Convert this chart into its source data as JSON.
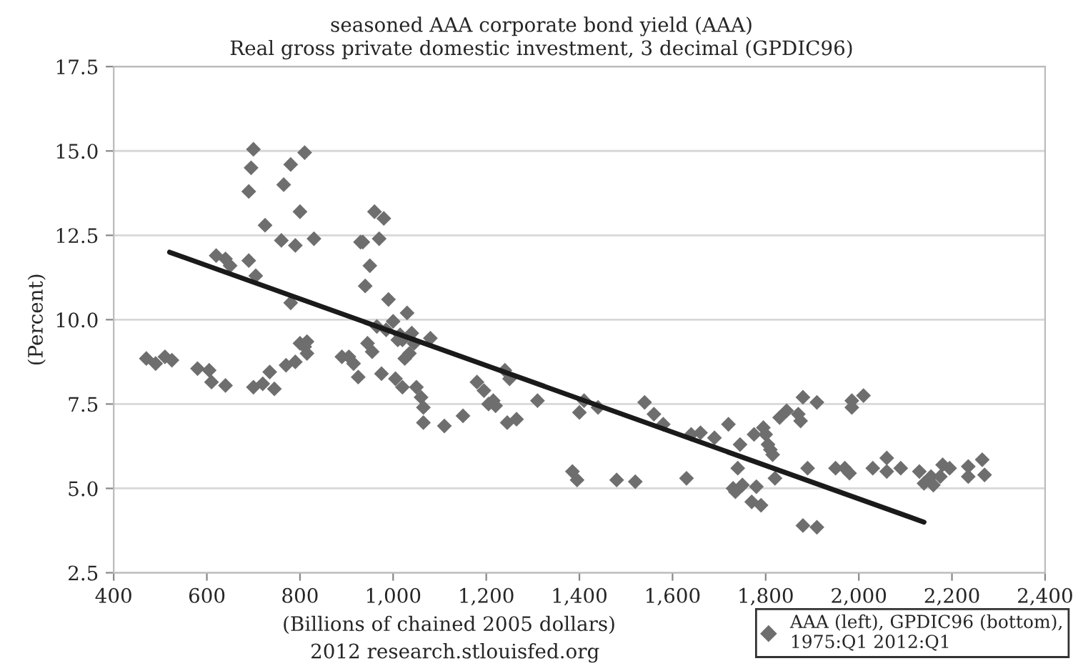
{
  "chart_data": {
    "type": "scatter",
    "title": "seasoned AAA corporate bond yield (AAA)",
    "subtitle": "Real gross private domestic investment, 3 decimal (GPDIC96)",
    "xlabel": "(Billions of chained 2005 dollars)",
    "ylabel": "(Percent)",
    "annotations": [
      "2012 research.stlouisfed.org"
    ],
    "xlim": [
      400,
      2400
    ],
    "xticks": [
      400,
      600,
      800,
      {
        "value": 1000,
        "label": "1,000"
      },
      {
        "value": 1200,
        "label": "1,200"
      },
      {
        "value": 1400,
        "label": "1,400"
      },
      {
        "value": 1600,
        "label": "1,600"
      },
      {
        "value": 1800,
        "label": "1,800"
      },
      {
        "value": 2000,
        "label": "2,000"
      },
      {
        "value": 2200,
        "label": "2,200"
      },
      {
        "value": 2400,
        "label": "2,400"
      }
    ],
    "ylim": [
      2.5,
      17.5
    ],
    "yticks": [
      2.5,
      {
        "value": 5,
        "label": "5.0"
      },
      7.5,
      {
        "value": 10,
        "label": "10.0"
      },
      12.5,
      {
        "value": 15,
        "label": "15.0"
      },
      17.5
    ],
    "grid": "y",
    "legend": "bottom right",
    "marker": "diamond",
    "series": [
      {
        "name": "AAA (left), GPDIC96 (bottom), 1975:Q1 2012:Q1",
        "color": "#6e6e6e",
        "x": [
          470,
          490,
          510,
          525,
          580,
          605,
          610,
          640,
          700,
          720,
          735,
          745,
          770,
          790,
          800,
          810,
          815,
          815,
          620,
          640,
          650,
          690,
          705,
          725,
          760,
          765,
          780,
          790,
          800,
          810,
          830,
          780,
          690,
          695,
          700,
          890,
          905,
          915,
          925,
          930,
          935,
          940,
          945,
          950,
          955,
          960,
          965,
          970,
          975,
          980,
          985,
          990,
          1000,
          1005,
          1010,
          1015,
          1020,
          1020,
          1025,
          1030,
          1035,
          1040,
          1045,
          1050,
          1060,
          1065,
          1065,
          1080,
          1110,
          1150,
          1180,
          1195,
          1205,
          1215,
          1220,
          1240,
          1245,
          1250,
          1265,
          1310,
          1385,
          1395,
          1400,
          1410,
          1440,
          1480,
          1520,
          1540,
          1560,
          1580,
          1630,
          1640,
          1660,
          1690,
          1720,
          1730,
          1735,
          1740,
          1745,
          1750,
          1770,
          1775,
          1780,
          1790,
          1795,
          1800,
          1805,
          1810,
          1815,
          1820,
          1830,
          1845,
          1870,
          1875,
          1880,
          1880,
          1890,
          1910,
          1910,
          1950,
          1970,
          1980,
          1985,
          1985,
          2010,
          2030,
          2060,
          2060,
          2090,
          2130,
          2140,
          2155,
          2160,
          2175,
          2180,
          2195,
          2235,
          2235,
          2265,
          2270
        ],
        "values": [
          8.85,
          8.7,
          8.9,
          8.8,
          8.55,
          8.5,
          8.15,
          8.05,
          8.0,
          8.1,
          8.45,
          7.95,
          8.65,
          8.75,
          9.3,
          9.2,
          9.35,
          9.0,
          11.9,
          11.8,
          11.6,
          11.75,
          11.3,
          12.8,
          12.35,
          14.0,
          14.6,
          12.2,
          13.2,
          14.95,
          12.4,
          10.5,
          13.8,
          14.5,
          15.05,
          8.9,
          8.9,
          8.7,
          8.3,
          12.3,
          12.3,
          11.0,
          9.3,
          11.6,
          9.05,
          13.2,
          9.8,
          12.4,
          8.4,
          13.0,
          9.7,
          10.6,
          9.95,
          8.25,
          9.4,
          9.55,
          8.0,
          9.4,
          8.85,
          10.2,
          9.0,
          9.6,
          9.3,
          8.0,
          7.7,
          7.4,
          6.95,
          9.45,
          6.85,
          7.15,
          8.15,
          7.9,
          7.5,
          7.6,
          7.45,
          8.5,
          6.95,
          8.25,
          7.05,
          7.6,
          5.5,
          5.25,
          7.25,
          7.6,
          7.4,
          5.25,
          5.2,
          7.55,
          7.2,
          6.9,
          5.3,
          6.6,
          6.65,
          6.5,
          6.9,
          5.0,
          4.9,
          5.6,
          6.3,
          5.1,
          4.6,
          6.6,
          5.05,
          4.5,
          6.8,
          6.6,
          6.3,
          6.15,
          6.0,
          5.3,
          7.1,
          7.3,
          7.2,
          7.0,
          7.7,
          3.9,
          5.6,
          7.55,
          3.85,
          5.6,
          5.6,
          5.45,
          7.6,
          7.4,
          7.75,
          5.6,
          5.9,
          5.5,
          5.6,
          5.5,
          5.15,
          5.35,
          5.1,
          5.35,
          5.7,
          5.6,
          5.65,
          5.35,
          5.85,
          5.4
        ]
      },
      {
        "type": "line",
        "marker": "none",
        "color": "#1a1a1a",
        "x": [
          520,
          2140
        ],
        "values": [
          12.0,
          4.0
        ]
      }
    ]
  }
}
